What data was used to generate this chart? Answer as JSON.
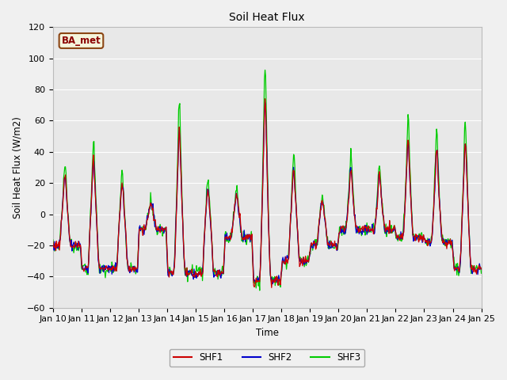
{
  "title": "Soil Heat Flux",
  "ylabel": "Soil Heat Flux (W/m2)",
  "xlabel": "Time",
  "ylim": [
    -60,
    120
  ],
  "yticks": [
    -60,
    -40,
    -20,
    0,
    20,
    40,
    60,
    80,
    100,
    120
  ],
  "background_color": "#f0f0f0",
  "plot_bg_color": "#e8e8e8",
  "shf1_color": "#cc0000",
  "shf2_color": "#0000cc",
  "shf3_color": "#00cc00",
  "station_label": "BA_met",
  "legend_labels": [
    "SHF1",
    "SHF2",
    "SHF3"
  ],
  "x_tick_labels": [
    "Jan 10",
    "Jan 11",
    "Jan 12",
    "Jan 13",
    "Jan 14",
    "Jan 15",
    "Jan 16",
    "Jan 17",
    "Jan 18",
    "Jan 19",
    "Jan 20",
    "Jan 21",
    "Jan 22",
    "Jan 23",
    "Jan 24",
    "Jan 25"
  ],
  "n_per_day": 48,
  "n_days": 15
}
